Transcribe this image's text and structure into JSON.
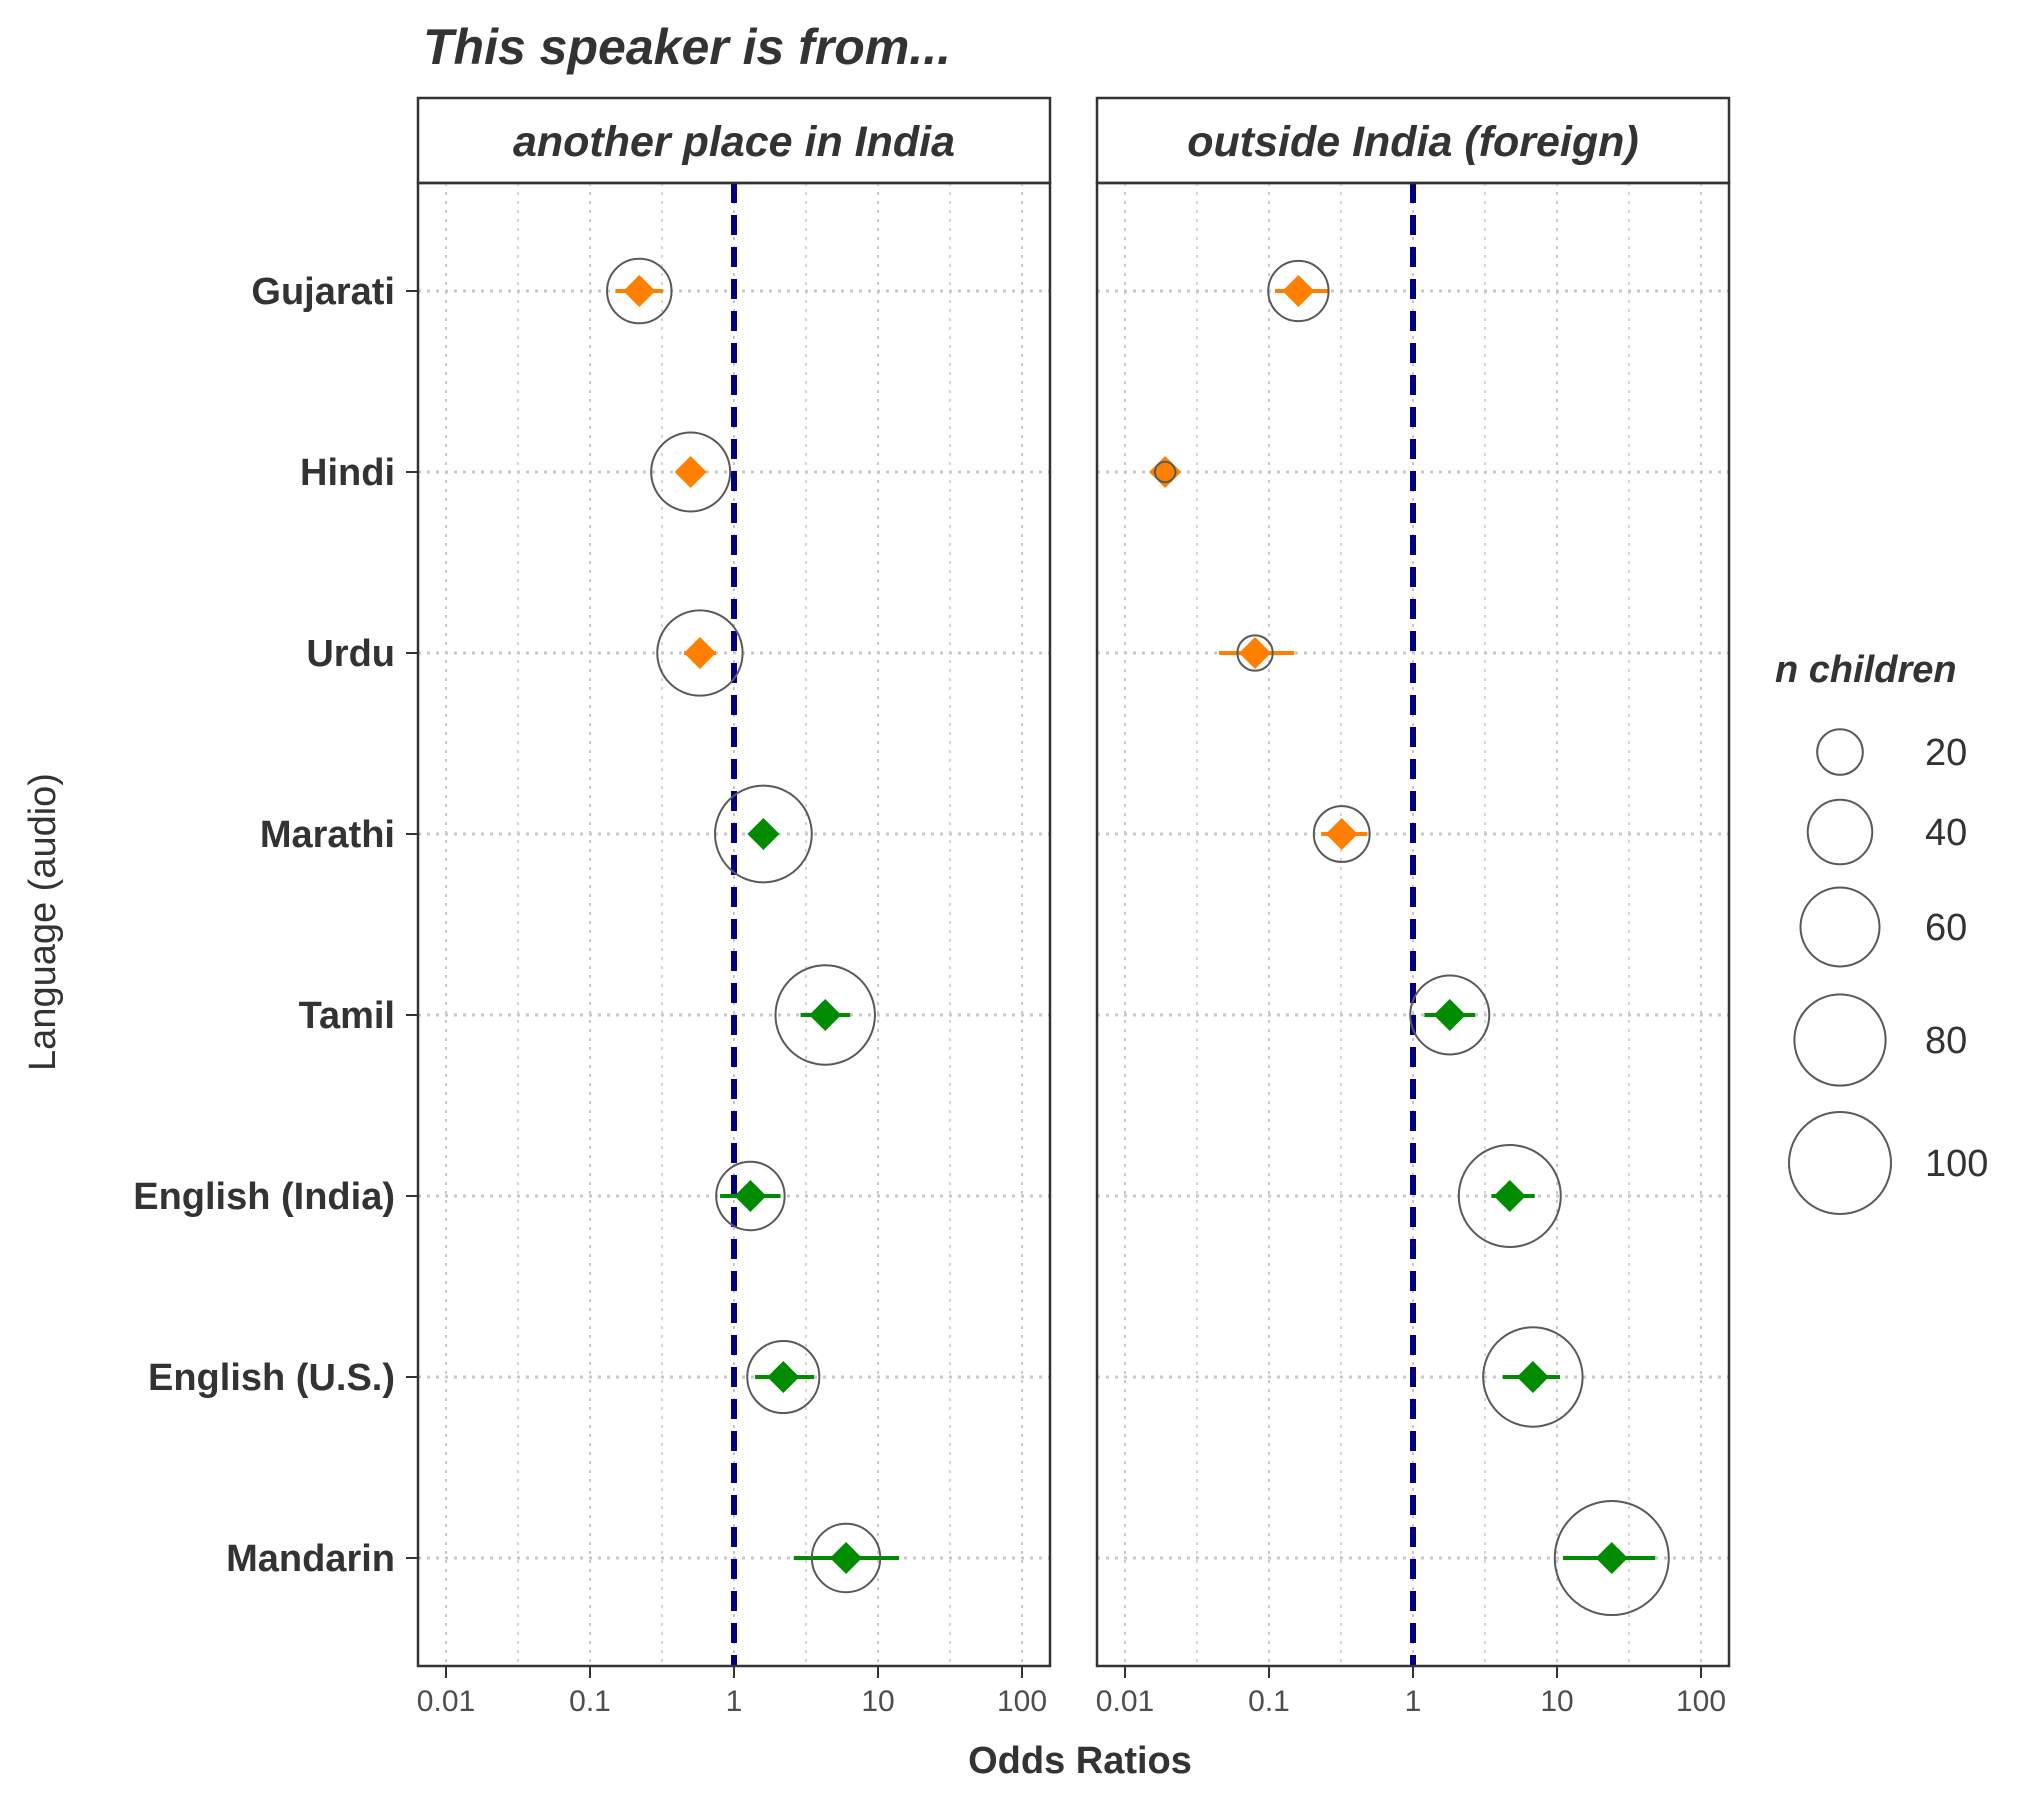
{
  "chart_data": {
    "type": "scatter",
    "title": "This speaker is from...",
    "xlabel": "Odds Ratios",
    "ylabel": "Language (audio)",
    "x_scale": "log10",
    "xlim": [
      0.006,
      150
    ],
    "x_ticks": [
      {
        "value": 0.01,
        "label": "0.01"
      },
      {
        "value": 0.1,
        "label": "0.1"
      },
      {
        "value": 1,
        "label": "1"
      },
      {
        "value": 10,
        "label": "10"
      },
      {
        "value": 100,
        "label": "100"
      }
    ],
    "reference_line": 1,
    "categories": [
      "Gujarati",
      "Hindi",
      "Urdu",
      "Marathi",
      "Tamil",
      "English (India)",
      "English (U.S.)",
      "Mandarin"
    ],
    "colors": {
      "below_one": "#FF7F00",
      "above_one": "#008B00",
      "reference_line": "#000080",
      "circle": "#595959",
      "panel_border": "#333333",
      "grid": "#c8c8c8"
    },
    "panels": [
      {
        "label": "another place in India",
        "points": [
          {
            "category": "Gujarati",
            "or": 0.22,
            "ci": [
              0.15,
              0.32
            ],
            "n": 40
          },
          {
            "category": "Hindi",
            "or": 0.5,
            "ci": [
              0.4,
              0.63
            ],
            "n": 60
          },
          {
            "category": "Urdu",
            "or": 0.58,
            "ci": [
              0.45,
              0.75
            ],
            "n": 70
          },
          {
            "category": "Marathi",
            "or": 1.6,
            "ci": [
              1.3,
              2.0
            ],
            "n": 90
          },
          {
            "category": "Tamil",
            "or": 4.3,
            "ci": [
              2.9,
              6.4
            ],
            "n": 95
          },
          {
            "category": "English (India)",
            "or": 1.3,
            "ci": [
              0.8,
              2.1
            ],
            "n": 45
          },
          {
            "category": "English (U.S.)",
            "or": 2.2,
            "ci": [
              1.4,
              3.6
            ],
            "n": 50
          },
          {
            "category": "Mandarin",
            "or": 6.0,
            "ci": [
              2.6,
              14.0
            ],
            "n": 45
          }
        ]
      },
      {
        "label": "outside India (foreign)",
        "points": [
          {
            "category": "Gujarati",
            "or": 0.16,
            "ci": [
              0.11,
              0.26
            ],
            "n": 35
          },
          {
            "category": "Hindi",
            "or": 0.019,
            "ci": [
              0.016,
              0.022
            ],
            "n": 4
          },
          {
            "category": "Urdu",
            "or": 0.08,
            "ci": [
              0.045,
              0.15
            ],
            "n": 12
          },
          {
            "category": "Marathi",
            "or": 0.32,
            "ci": [
              0.23,
              0.48
            ],
            "n": 30
          },
          {
            "category": "Tamil",
            "or": 1.8,
            "ci": [
              1.2,
              2.7
            ],
            "n": 60
          },
          {
            "category": "English (India)",
            "or": 4.7,
            "ci": [
              3.5,
              7.0
            ],
            "n": 100
          },
          {
            "category": "English (U.S.)",
            "or": 6.8,
            "ci": [
              4.2,
              10.5
            ],
            "n": 95
          },
          {
            "category": "Mandarin",
            "or": 24.0,
            "ci": [
              11.0,
              48.0
            ],
            "n": 125
          }
        ]
      }
    ],
    "legend": {
      "title": "n children",
      "position": "right",
      "entries": [
        {
          "label": "20",
          "n": 20
        },
        {
          "label": "40",
          "n": 40
        },
        {
          "label": "60",
          "n": 60
        },
        {
          "label": "80",
          "n": 80
        },
        {
          "label": "100",
          "n": 100
        }
      ]
    }
  }
}
